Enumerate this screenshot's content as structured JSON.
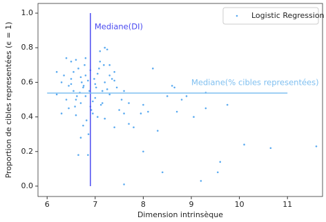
{
  "chart_data": {
    "type": "scatter",
    "xlabel": "Dimension intrinsèque",
    "ylabel": "Proportion de cibles representées (ϵ = 1)",
    "xlim": [
      5.81,
      11.73
    ],
    "ylim": [
      -0.06,
      1.056
    ],
    "xticks": [
      6,
      7,
      8,
      9,
      10,
      11
    ],
    "yticks": [
      {
        "value": 0,
        "label": "0.0"
      },
      {
        "value": 0.2,
        "label": "0.2"
      },
      {
        "value": 0.4,
        "label": "0.4"
      },
      {
        "value": 0.6,
        "label": "0.6"
      },
      {
        "value": 0.8,
        "label": "0.8"
      },
      {
        "value": 1,
        "label": "1.0"
      }
    ],
    "legend": "upper right",
    "series": [
      {
        "name": "Logistic Regression",
        "color": "#5aaaf0",
        "x": [
          11.6,
          10.65,
          10.1,
          9.55,
          9.6,
          8.4,
          7.6,
          9.2,
          8.0,
          8.3,
          8.7,
          9.05,
          9.3,
          9.75,
          8.6,
          8.65,
          9.3,
          8.2,
          8.9,
          8.8,
          8.5,
          8.0,
          8.1,
          7.95,
          7.8,
          7.7,
          7.4,
          7.2,
          7.5,
          7.6,
          6.85,
          6.65,
          6.7,
          6.75,
          7.1,
          7.2,
          7.25,
          7.1,
          7.3,
          7.4,
          6.4,
          6.5,
          6.6,
          6.8,
          6.2,
          6.2,
          6.3,
          6.3,
          6.35,
          6.45,
          6.5,
          6.55,
          6.6,
          6.65,
          6.7,
          6.75,
          6.8,
          6.85,
          6.9,
          6.95,
          7.0,
          7.05,
          7.15,
          7.2,
          7.3,
          7.35,
          7.45,
          7.55,
          6.45,
          6.55,
          6.6,
          6.7,
          6.78,
          6.82,
          6.88,
          6.92,
          7.0,
          7.08,
          7.12,
          7.25,
          7.4,
          6.5,
          6.62,
          6.72,
          6.8,
          6.9,
          6.95,
          7.02,
          7.15,
          7.3,
          6.4,
          6.58,
          6.68,
          6.76,
          6.86,
          6.98,
          7.05,
          7.18,
          7.6,
          7.7
        ],
        "y": [
          0.23,
          0.22,
          0.24,
          0.08,
          0.14,
          0.08,
          0.01,
          0.03,
          0.2,
          0.32,
          0.43,
          0.4,
          0.45,
          0.47,
          0.58,
          0.57,
          0.54,
          0.68,
          0.52,
          0.5,
          0.52,
          0.47,
          0.43,
          0.42,
          0.34,
          0.36,
          0.34,
          0.39,
          0.44,
          0.42,
          0.18,
          0.18,
          0.28,
          0.35,
          0.78,
          0.8,
          0.79,
          0.72,
          0.7,
          0.66,
          0.74,
          0.72,
          0.73,
          0.74,
          0.66,
          0.53,
          0.42,
          0.6,
          0.64,
          0.58,
          0.62,
          0.55,
          0.5,
          0.68,
          0.63,
          0.57,
          0.52,
          0.61,
          0.46,
          0.49,
          0.59,
          0.65,
          0.55,
          0.6,
          0.53,
          0.62,
          0.57,
          0.5,
          0.45,
          0.66,
          0.41,
          0.48,
          0.7,
          0.38,
          0.55,
          0.44,
          0.51,
          0.68,
          0.47,
          0.56,
          0.61,
          0.59,
          0.52,
          0.6,
          0.64,
          0.67,
          0.42,
          0.57,
          0.48,
          0.64,
          0.5,
          0.46,
          0.54,
          0.58,
          0.3,
          0.62,
          0.4,
          0.7,
          0.55,
          0.48
        ]
      }
    ],
    "vlines": [
      {
        "x": 6.9,
        "ymin": 0,
        "ymax": 1,
        "color": "#4a4af0",
        "label": "Mediane(DI)"
      }
    ],
    "hlines": [
      {
        "y": 0.538,
        "xmin": 6,
        "xmax": 11,
        "color": "#7fbff0",
        "label": "Mediane(% cibles representées)"
      }
    ]
  }
}
